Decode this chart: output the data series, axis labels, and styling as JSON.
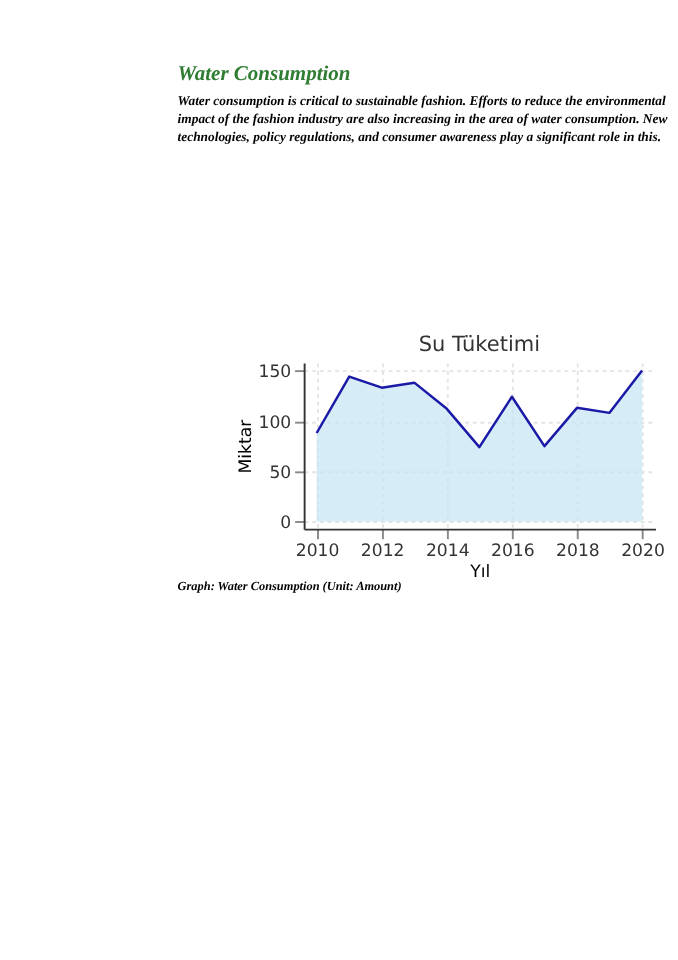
{
  "chart_data": {
    "type": "area",
    "title": "Su Tüketimi",
    "xlabel": "Yıl",
    "ylabel": "Miktar",
    "x": [
      2010,
      2011,
      2012,
      2013,
      2014,
      2015,
      2016,
      2017,
      2018,
      2019,
      2020
    ],
    "series": [
      {
        "color": "#c4e4f4",
        "values": [
          88,
          144,
          133,
          138,
          112,
          74,
          124,
          75,
          113,
          108,
          150
        ]
      }
    ],
    "xlim": [
      2009.6,
      2020.4
    ],
    "xticks": [
      2010,
      2012,
      2014,
      2016,
      2018,
      2020
    ],
    "ylim": [
      -7,
      158
    ],
    "yticks": [
      0,
      50,
      100,
      150
    ],
    "grid": true,
    "annotations": [
      "Water Consumption",
      "Water consumption is critical to sustainable fashion. Efforts to reduce the environmental impact of the fashion industry are also increasing in the area of water consumption. New technologies, policy regulations, and consumer awareness play a significant role in this.",
      "Graph: Water Consumption (Unit: Amount)"
    ]
  }
}
